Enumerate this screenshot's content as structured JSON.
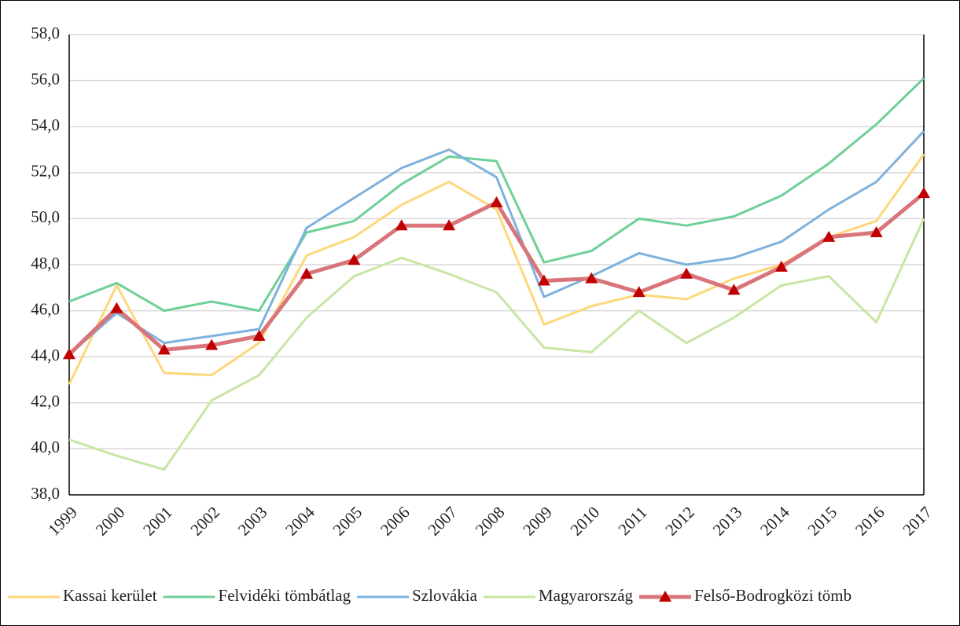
{
  "chart_data": {
    "type": "line",
    "categories": [
      "1999",
      "2000",
      "2001",
      "2002",
      "2003",
      "2004",
      "2005",
      "2006",
      "2007",
      "2008",
      "2009",
      "2010",
      "2011",
      "2012",
      "2013",
      "2014",
      "2015",
      "2016",
      "2017"
    ],
    "series": [
      {
        "name": "Kassai kerület",
        "color": "#fdd77a",
        "values": [
          42.8,
          47.1,
          43.3,
          43.2,
          44.6,
          48.4,
          49.2,
          50.6,
          51.6,
          50.4,
          45.4,
          46.2,
          46.7,
          46.5,
          47.4,
          48.0,
          49.2,
          49.9,
          52.8
        ]
      },
      {
        "name": "Felvidéki tömbátlag",
        "color": "#6fcf97",
        "values": [
          46.4,
          47.2,
          46.0,
          46.4,
          46.0,
          49.4,
          49.9,
          51.5,
          52.7,
          52.5,
          48.1,
          48.6,
          50.0,
          49.7,
          50.1,
          51.0,
          52.4,
          54.1,
          56.1
        ]
      },
      {
        "name": "Szlovákia",
        "color": "#7eb2dd",
        "values": [
          44.1,
          45.9,
          44.6,
          44.9,
          45.2,
          49.6,
          50.9,
          52.2,
          53.0,
          51.8,
          46.6,
          47.5,
          48.5,
          48.0,
          48.3,
          49.0,
          50.4,
          51.6,
          53.8
        ]
      },
      {
        "name": "Magyarország",
        "color": "#c7e6a4",
        "values": [
          40.4,
          39.7,
          39.1,
          42.1,
          43.2,
          45.7,
          47.5,
          48.3,
          47.6,
          46.8,
          44.4,
          44.2,
          46.0,
          44.6,
          45.7,
          47.1,
          47.5,
          45.5,
          50.0
        ]
      },
      {
        "name": "Felső-Bodrogközi tömb",
        "color": "#d9757a",
        "marker": "triangle",
        "marker_color": "#c00000",
        "values": [
          44.1,
          46.1,
          44.3,
          44.5,
          44.9,
          47.6,
          48.2,
          49.7,
          49.7,
          50.7,
          47.3,
          47.4,
          46.8,
          47.6,
          46.9,
          47.9,
          49.2,
          49.4,
          51.1
        ]
      }
    ],
    "ylim": [
      38,
      58
    ],
    "yticks": [
      {
        "value": 38,
        "label": "38,0"
      },
      {
        "value": 40,
        "label": "40,0"
      },
      {
        "value": 42,
        "label": "42,0"
      },
      {
        "value": 44,
        "label": "44,0"
      },
      {
        "value": 46,
        "label": "46,0"
      },
      {
        "value": 48,
        "label": "48,0"
      },
      {
        "value": 50,
        "label": "50,0"
      },
      {
        "value": 52,
        "label": "52,0"
      },
      {
        "value": 54,
        "label": "54,0"
      },
      {
        "value": 56,
        "label": "56,0"
      },
      {
        "value": 58,
        "label": "58,0"
      }
    ],
    "grid": true,
    "legend": "bottom"
  }
}
